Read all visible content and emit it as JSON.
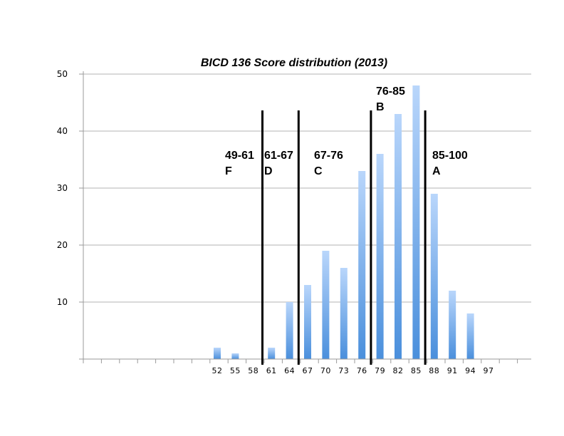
{
  "chart_data": {
    "type": "bar",
    "title": "BICD 136 Score distribution (2013)",
    "xlabel": "",
    "ylabel": "",
    "ylim": [
      0,
      50
    ],
    "yticks": [
      "10",
      "20",
      "30",
      "40",
      "50"
    ],
    "grid": "horizontal",
    "categories": [
      "52",
      "55",
      "58",
      "61",
      "64",
      "67",
      "70",
      "73",
      "76",
      "79",
      "82",
      "85",
      "88",
      "91",
      "94",
      "97"
    ],
    "values": [
      2,
      1,
      0,
      2,
      10,
      13,
      19,
      16,
      33,
      36,
      43,
      48,
      29,
      12,
      8,
      0
    ],
    "bar_color_top": "#b9d6fb",
    "bar_color_bottom": "#4a8fdc",
    "cutoffs": [
      59.5,
      65.5,
      77.5,
      86.5
    ],
    "grade_bands": [
      {
        "range": "49-61",
        "grade": "F"
      },
      {
        "range": "61-67",
        "grade": "D"
      },
      {
        "range": "67-76",
        "grade": "C"
      },
      {
        "range": "76-85",
        "grade": "B"
      },
      {
        "range": "85-100",
        "grade": "A"
      }
    ]
  }
}
